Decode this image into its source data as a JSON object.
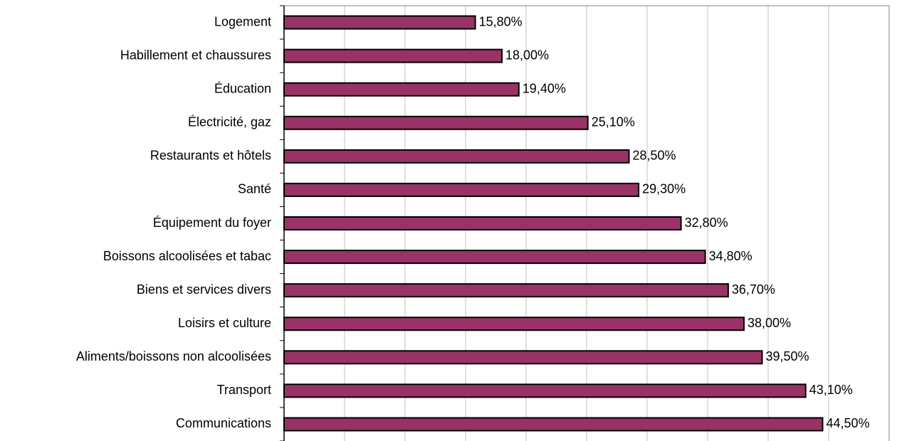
{
  "chart_data": {
    "type": "barh",
    "categories": [
      "Logement",
      "Habillement et chaussures",
      "Éducation",
      "Électricité, gaz",
      "Restaurants et hôtels",
      "Santé",
      "Équipement du foyer",
      "Boissons alcoolisées et tabac",
      "Biens et services divers",
      "Loisirs et culture",
      "Aliments/boissons non alcoolisées",
      "Transport",
      "Communications"
    ],
    "values": [
      15.8,
      18.0,
      19.4,
      25.1,
      28.5,
      29.3,
      32.8,
      34.8,
      36.7,
      38.0,
      39.5,
      43.1,
      44.5
    ],
    "value_labels": [
      "15,80%",
      "18,00%",
      "19,40%",
      "25,10%",
      "28,50%",
      "29,30%",
      "32,80%",
      "34,80%",
      "36,70%",
      "38,00%",
      "39,50%",
      "43,10%",
      "44,50%"
    ],
    "color": "#993366",
    "xlim": [
      0,
      50
    ],
    "xticks": [
      0,
      5,
      10,
      15,
      20,
      25,
      30,
      35,
      40,
      45,
      50
    ],
    "grid": true
  }
}
